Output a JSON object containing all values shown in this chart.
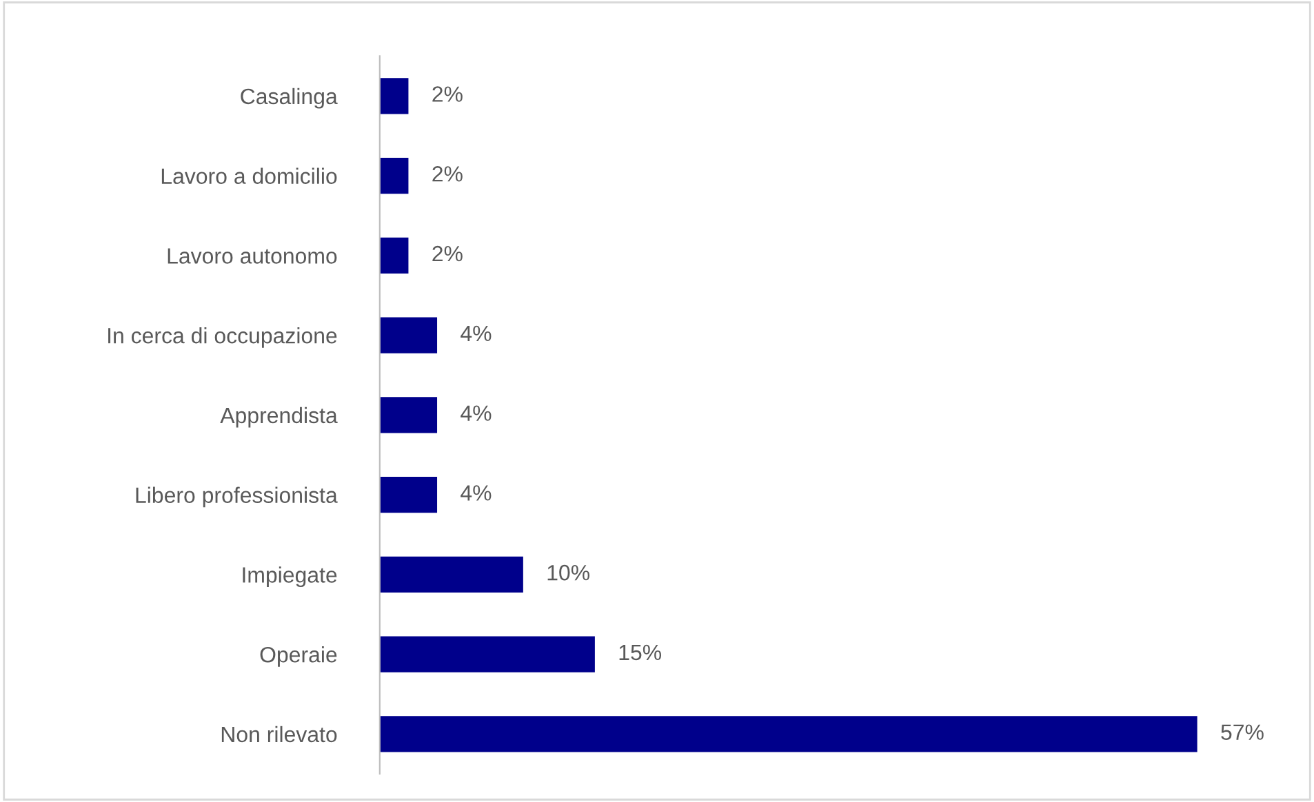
{
  "chart_data": {
    "type": "bar",
    "orientation": "horizontal",
    "categories": [
      "Casalinga",
      "Lavoro a domicilio",
      "Lavoro autonomo",
      "In cerca di occupazione",
      "Apprendista",
      "Libero professionista",
      "Impiegate",
      "Operaie",
      "Non rilevato"
    ],
    "values": [
      2,
      2,
      2,
      4,
      4,
      4,
      10,
      15,
      57
    ],
    "color": "#00008b",
    "data_labels": true,
    "value_labels": [
      "2%",
      "2%",
      "2%",
      "4%",
      "4%",
      "4%",
      "10%",
      "15%",
      "57%"
    ],
    "grid": false,
    "legend": false
  }
}
